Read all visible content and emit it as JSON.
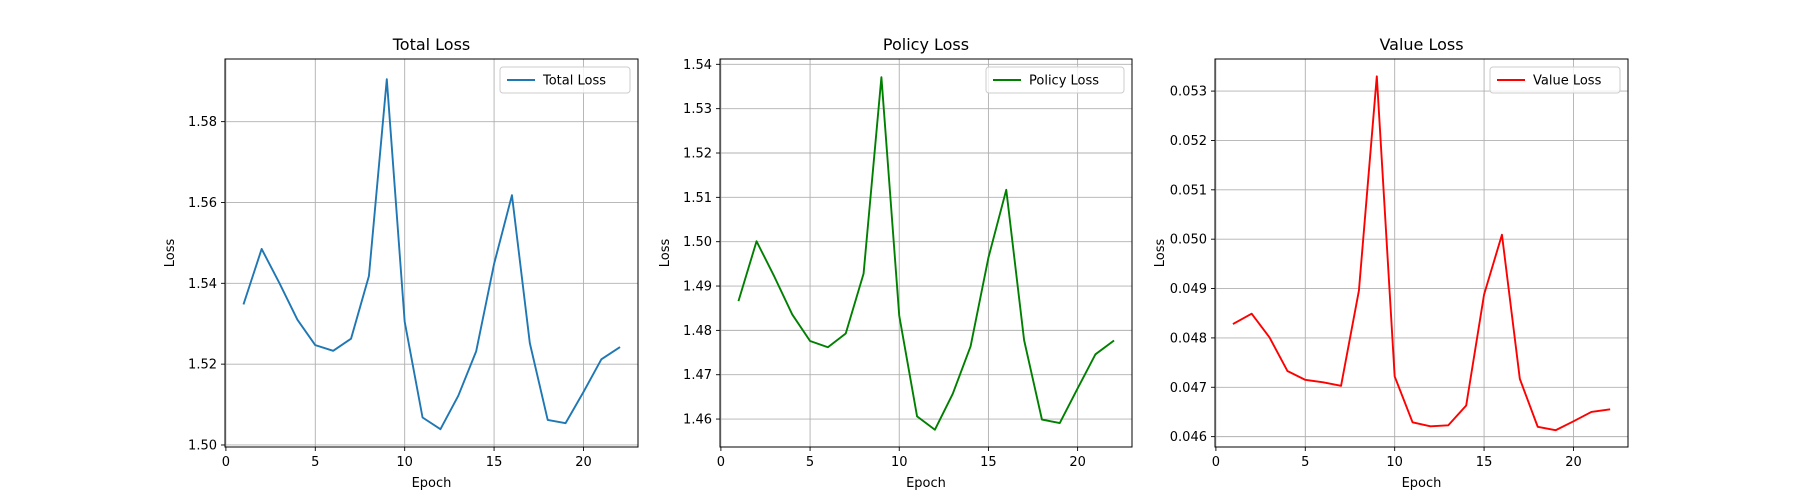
{
  "chart_data": [
    {
      "type": "line",
      "title": "Total Loss",
      "xlabel": "Epoch",
      "ylabel": "Loss",
      "xlim": [
        -0.05,
        23.05
      ],
      "ylim": [
        1.4995,
        1.5955
      ],
      "xticks": [
        0,
        5,
        10,
        15,
        20
      ],
      "yticks": [
        1.5,
        1.52,
        1.54,
        1.56,
        1.58
      ],
      "ytick_labels": [
        "1.50",
        "1.52",
        "1.54",
        "1.56",
        "1.58"
      ],
      "grid": true,
      "legend_position": "top-right",
      "series": [
        {
          "name": "Total Loss",
          "color": "#1f77b4",
          "x": [
            1,
            2,
            3,
            4,
            5,
            6,
            7,
            8,
            9,
            10,
            11,
            12,
            13,
            14,
            15,
            16,
            17,
            18,
            19,
            20,
            21,
            22
          ],
          "values": [
            1.535,
            1.5485,
            1.54,
            1.531,
            1.5247,
            1.5233,
            1.5263,
            1.5418,
            1.5905,
            1.5305,
            1.5068,
            1.5039,
            1.5122,
            1.5232,
            1.5448,
            1.5618,
            1.5252,
            1.5062,
            1.5054,
            1.5131,
            1.5212,
            1.5241
          ]
        }
      ]
    },
    {
      "type": "line",
      "title": "Policy Loss",
      "xlabel": "Epoch",
      "ylabel": "Loss",
      "xlim": [
        -0.05,
        23.05
      ],
      "ylim": [
        1.4537,
        1.5412
      ],
      "xticks": [
        0,
        5,
        10,
        15,
        20
      ],
      "yticks": [
        1.46,
        1.47,
        1.48,
        1.49,
        1.5,
        1.51,
        1.52,
        1.53,
        1.54
      ],
      "ytick_labels": [
        "1.46",
        "1.47",
        "1.48",
        "1.49",
        "1.50",
        "1.51",
        "1.52",
        "1.53",
        "1.54"
      ],
      "grid": true,
      "legend_position": "top-right",
      "series": [
        {
          "name": "Policy Loss",
          "color": "#008000",
          "x": [
            1,
            2,
            3,
            4,
            5,
            6,
            7,
            8,
            9,
            10,
            11,
            12,
            13,
            14,
            15,
            16,
            17,
            18,
            19,
            20,
            21,
            22
          ],
          "values": [
            1.4868,
            1.5001,
            1.4921,
            1.4836,
            1.4776,
            1.4762,
            1.4793,
            1.4928,
            1.5371,
            1.4833,
            1.4606,
            1.4576,
            1.4657,
            1.4764,
            1.4964,
            1.5117,
            1.4778,
            1.4599,
            1.4591,
            1.4669,
            1.4746,
            1.4776
          ]
        }
      ]
    },
    {
      "type": "line",
      "title": "Value Loss",
      "xlabel": "Epoch",
      "ylabel": "Loss",
      "xlim": [
        -0.05,
        23.05
      ],
      "ylim": [
        0.04579,
        0.05365
      ],
      "xticks": [
        0,
        5,
        10,
        15,
        20
      ],
      "yticks": [
        0.046,
        0.047,
        0.048,
        0.049,
        0.05,
        0.051,
        0.052,
        0.053
      ],
      "ytick_labels": [
        "0.046",
        "0.047",
        "0.048",
        "0.049",
        "0.050",
        "0.051",
        "0.052",
        "0.053"
      ],
      "grid": true,
      "legend_position": "top-right",
      "series": [
        {
          "name": "Value Loss",
          "color": "#ff0000",
          "x": [
            1,
            2,
            3,
            4,
            5,
            6,
            7,
            8,
            9,
            10,
            11,
            12,
            13,
            14,
            15,
            16,
            17,
            18,
            19,
            20,
            21,
            22
          ],
          "values": [
            0.04829,
            0.04849,
            0.04801,
            0.04733,
            0.04715,
            0.0471,
            0.04703,
            0.04896,
            0.0533,
            0.04722,
            0.04629,
            0.04621,
            0.04623,
            0.04663,
            0.04888,
            0.05009,
            0.04717,
            0.0462,
            0.04613,
            0.04631,
            0.0465,
            0.04655
          ]
        }
      ]
    }
  ]
}
